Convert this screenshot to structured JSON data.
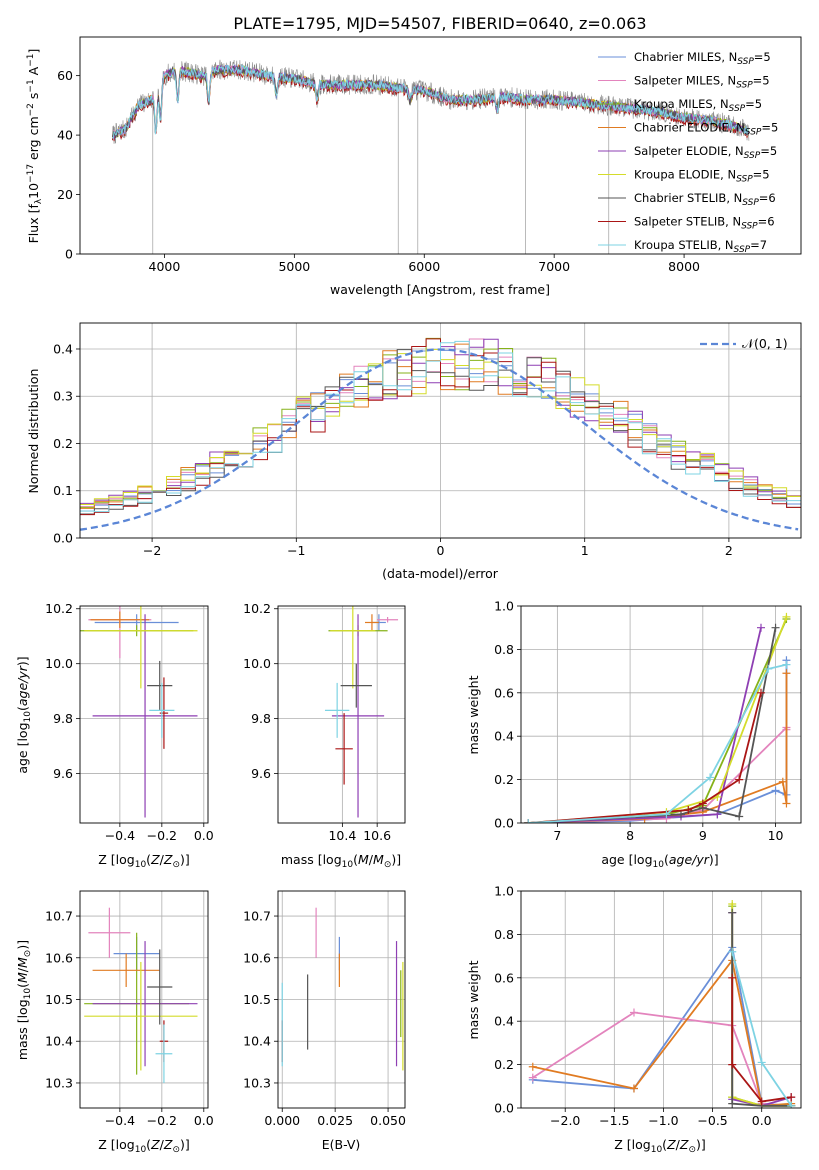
{
  "figure_title": "PLATE=1795, MJD=54507, FIBERID=0640, z=0.063",
  "series_names": [
    "Chabrier MILES, N_SSP=5",
    "Salpeter MILES, N_SSP=5",
    "Kroupa MILES, N_SSP=5",
    "Chabrier ELODIE, N_SSP=5",
    "Salpeter ELODIE, N_SSP=5",
    "Kroupa ELODIE, N_SSP=5",
    "Chabrier STELIB, N_SSP=6",
    "Salpeter STELIB, N_SSP=6",
    "Kroupa STELIB, N_SSP=7"
  ],
  "colors": [
    "#6a8fd8",
    "#e384bd",
    "#86b21a",
    "#e07b22",
    "#8e3fb3",
    "#d4dc2a",
    "#555555",
    "#aa1515",
    "#7ed3e3"
  ],
  "chart_data": [
    {
      "type": "line",
      "title": "PLATE=1795, MJD=54507, FIBERID=0640, z=0.063",
      "xlabel": "wavelength [Angstrom, rest frame]",
      "ylabel": "Flux [f_λ 10^-17 erg cm^-2 s^-1 A^-1]",
      "xlim": [
        3350,
        8900
      ],
      "ylim": [
        0,
        73
      ],
      "xticks": [
        4000,
        5000,
        6000,
        7000,
        8000
      ],
      "yticks": [
        0,
        20,
        40,
        60
      ],
      "legend": "upper-right",
      "x": [
        3600,
        3700,
        3800,
        3900,
        4000,
        4100,
        4200,
        4300,
        4400,
        4600,
        4800,
        5000,
        5200,
        5400,
        5600,
        5800,
        6000,
        6200,
        6400,
        6600,
        6800,
        7000,
        7200,
        7400,
        7600,
        7800,
        8000,
        8200,
        8400,
        8500
      ],
      "series": [
        {
          "name": "Kroupa STELIB, N_SSP=7",
          "values": [
            40,
            42,
            50,
            52,
            60,
            62,
            61,
            60,
            62,
            62,
            60,
            59,
            57,
            57,
            57,
            56,
            55,
            52,
            52,
            53,
            52,
            52,
            51,
            50,
            49,
            48,
            46,
            45,
            43,
            41
          ]
        }
      ]
    },
    {
      "type": "histogram",
      "xlabel": "(data-model)/error",
      "ylabel": "Normed distribution",
      "xlim": [
        -2.5,
        2.5
      ],
      "ylim": [
        0,
        0.455
      ],
      "xticks": [
        -2,
        -1,
        0,
        1,
        2
      ],
      "yticks": [
        0.0,
        0.1,
        0.2,
        0.3,
        0.4
      ],
      "legend": "upper-right",
      "reference_curve": "𝒩(0, 1)",
      "bin_width": 0.1
    },
    {
      "type": "scatter",
      "xlabel": "Z [log10(Z/Z⊙)]",
      "ylabel": "age  [log10(age/yr)]",
      "xlim": [
        -0.59,
        0.02
      ],
      "ylim": [
        9.42,
        10.21
      ],
      "xticks": [
        -0.4,
        -0.2,
        0.0
      ],
      "yticks": [
        9.6,
        9.8,
        10.0,
        10.2
      ],
      "points": [
        {
          "x": -0.32,
          "y": 10.15,
          "xerr": 0.2,
          "yerr": 0.03
        },
        {
          "x": -0.4,
          "y": 10.16,
          "xerr": 0.15,
          "yerr": 0.14
        },
        {
          "x": -0.32,
          "y": 10.12,
          "xerr": 0.27,
          "yerr": 0.02
        },
        {
          "x": -0.4,
          "y": 10.16,
          "xerr": 0.14,
          "yerr": 0.03
        },
        {
          "x": -0.28,
          "y": 9.81,
          "xerr": 0.25,
          "yerr": 0.37
        },
        {
          "x": -0.3,
          "y": 10.12,
          "xerr": 0.27,
          "yerr": 0.21
        },
        {
          "x": -0.21,
          "y": 9.92,
          "xerr": 0.06,
          "yerr": 0.09
        },
        {
          "x": -0.19,
          "y": 9.82,
          "xerr": 0.02,
          "yerr": 0.13
        },
        {
          "x": -0.2,
          "y": 9.83,
          "xerr": 0.06,
          "yerr": 0.1
        }
      ]
    },
    {
      "type": "scatter",
      "xlabel": "mass [log10(M/M⊙)]",
      "ylabel": "",
      "xlim": [
        10.03,
        10.76
      ],
      "ylim": [
        9.42,
        10.21
      ],
      "xticks": [
        10.4,
        10.6
      ],
      "yticks": [
        9.6,
        9.8,
        10.0,
        10.2
      ],
      "points": [
        {
          "x": 10.61,
          "y": 10.15,
          "xerr": 0.04,
          "yerr": 0.03
        },
        {
          "x": 10.66,
          "y": 10.16,
          "xerr": 0.06,
          "yerr": 0.01
        },
        {
          "x": 10.49,
          "y": 10.12,
          "xerr": 0.17,
          "yerr": 0.02
        },
        {
          "x": 10.57,
          "y": 10.15,
          "xerr": 0.04,
          "yerr": 0.03
        },
        {
          "x": 10.49,
          "y": 9.81,
          "xerr": 0.15,
          "yerr": 0.37
        },
        {
          "x": 10.46,
          "y": 10.12,
          "xerr": 0.13,
          "yerr": 0.21
        },
        {
          "x": 10.48,
          "y": 9.92,
          "xerr": 0.09,
          "yerr": 0.08
        },
        {
          "x": 10.41,
          "y": 9.69,
          "xerr": 0.05,
          "yerr": 0.13
        },
        {
          "x": 10.37,
          "y": 9.83,
          "xerr": 0.07,
          "yerr": 0.1
        }
      ]
    },
    {
      "type": "line",
      "xlabel": "age  [log10(age/yr)]",
      "ylabel": "mass weight",
      "xlim": [
        6.5,
        10.35
      ],
      "ylim": [
        0,
        1.0
      ],
      "xticks": [
        7,
        8,
        9,
        10
      ],
      "yticks": [
        0.0,
        0.2,
        0.4,
        0.6,
        0.8,
        1.0
      ],
      "series": [
        {
          "name": "Chabrier MILES, N_SSP=5",
          "x": [
            6.6,
            8.0,
            9.2,
            10.0,
            10.15,
            10.15
          ],
          "values": [
            0.0,
            0.01,
            0.04,
            0.15,
            0.13,
            0.75
          ]
        },
        {
          "name": "Salpeter MILES, N_SSP=5",
          "x": [
            6.6,
            8.5,
            9.0,
            10.15,
            10.15
          ],
          "values": [
            0.0,
            0.02,
            0.06,
            0.44,
            0.43
          ]
        },
        {
          "name": "Kroupa MILES, N_SSP=5",
          "x": [
            6.6,
            8.5,
            9.0,
            10.15
          ],
          "values": [
            0.0,
            0.04,
            0.08,
            0.94
          ]
        },
        {
          "name": "Chabrier ELODIE, N_SSP=5",
          "x": [
            6.6,
            8.2,
            9.0,
            10.1,
            10.15,
            10.15
          ],
          "values": [
            0.0,
            0.02,
            0.05,
            0.19,
            0.09,
            0.69
          ]
        },
        {
          "name": "Salpeter ELODIE, N_SSP=5",
          "x": [
            6.6,
            8.7,
            9.2,
            9.8
          ],
          "values": [
            0.0,
            0.03,
            0.04,
            0.9
          ]
        },
        {
          "name": "Kroupa ELODIE, N_SSP=5",
          "x": [
            6.6,
            8.5,
            9.2,
            10.15
          ],
          "values": [
            0.0,
            0.05,
            0.12,
            0.95
          ]
        },
        {
          "name": "Chabrier STELIB, N_SSP=6",
          "x": [
            6.6,
            8.7,
            9.0,
            9.5,
            10.0
          ],
          "values": [
            0.0,
            0.04,
            0.07,
            0.03,
            0.9
          ]
        },
        {
          "name": "Salpeter STELIB, N_SSP=6",
          "x": [
            6.6,
            8.8,
            9.0,
            9.5,
            9.8
          ],
          "values": [
            0.0,
            0.06,
            0.09,
            0.2,
            0.6
          ]
        },
        {
          "name": "Kroupa STELIB, N_SSP=7",
          "x": [
            6.6,
            8.5,
            9.1,
            9.9,
            10.15
          ],
          "values": [
            0.0,
            0.04,
            0.21,
            0.71,
            0.73
          ]
        }
      ]
    },
    {
      "type": "scatter",
      "xlabel": "Z [log10(Z/Z⊙)]",
      "ylabel": "mass [log10(M/M⊙)]",
      "xlim": [
        -0.59,
        0.02
      ],
      "ylim": [
        10.24,
        10.76
      ],
      "xticks": [
        -0.4,
        -0.2,
        0.0
      ],
      "yticks": [
        10.3,
        10.4,
        10.5,
        10.6,
        10.7
      ],
      "points": [
        {
          "x": -0.32,
          "y": 10.61,
          "xerr": 0.11,
          "yerr": 0.04
        },
        {
          "x": -0.45,
          "y": 10.66,
          "xerr": 0.1,
          "yerr": 0.06
        },
        {
          "x": -0.32,
          "y": 10.49,
          "xerr": 0.25,
          "yerr": 0.17
        },
        {
          "x": -0.37,
          "y": 10.57,
          "xerr": 0.16,
          "yerr": 0.04
        },
        {
          "x": -0.28,
          "y": 10.49,
          "xerr": 0.25,
          "yerr": 0.15
        },
        {
          "x": -0.3,
          "y": 10.46,
          "xerr": 0.27,
          "yerr": 0.13
        },
        {
          "x": -0.21,
          "y": 10.53,
          "xerr": 0.06,
          "yerr": 0.09
        },
        {
          "x": -0.19,
          "y": 10.4,
          "xerr": 0.02,
          "yerr": 0.05
        },
        {
          "x": -0.19,
          "y": 10.37,
          "xerr": 0.04,
          "yerr": 0.07
        }
      ]
    },
    {
      "type": "scatter",
      "xlabel": "E(B-V)",
      "ylabel": "",
      "xlim": [
        -0.002,
        0.058
      ],
      "ylim": [
        10.24,
        10.76
      ],
      "xticks": [
        0.0,
        0.025,
        0.05
      ],
      "xticklabels": [
        "0.000",
        "0.025",
        "0.050"
      ],
      "yticks": [
        10.3,
        10.4,
        10.5,
        10.6,
        10.7
      ],
      "points": [
        {
          "x": 0.027,
          "y": 10.61,
          "yerr": 0.04
        },
        {
          "x": 0.016,
          "y": 10.66,
          "yerr": 0.06
        },
        {
          "x": 0.056,
          "y": 10.49,
          "yerr": 0.08
        },
        {
          "x": 0.027,
          "y": 10.57,
          "yerr": 0.04
        },
        {
          "x": 0.054,
          "y": 10.49,
          "yerr": 0.15
        },
        {
          "x": 0.057,
          "y": 10.46,
          "yerr": 0.13
        },
        {
          "x": 0.012,
          "y": 10.47,
          "yerr": 0.09
        },
        {
          "x": 0.0,
          "y": 10.4,
          "yerr": 0.05
        },
        {
          "x": 0.0,
          "y": 10.44,
          "yerr": 0.1
        }
      ]
    },
    {
      "type": "line",
      "xlabel": "Z [log10(Z/Z⊙)]",
      "ylabel": "mass weight",
      "xlim": [
        -2.45,
        0.4
      ],
      "ylim": [
        0,
        1.0
      ],
      "xticks": [
        -2.0,
        -1.5,
        -1.0,
        -0.5,
        0.0
      ],
      "yticks": [
        0.0,
        0.2,
        0.4,
        0.6,
        0.8,
        1.0
      ],
      "series": [
        {
          "name": "Chabrier MILES, N_SSP=5",
          "x": [
            -2.33,
            -1.3,
            -0.3,
            0.0,
            0.3
          ],
          "values": [
            0.13,
            0.09,
            0.74,
            0.02,
            0.01
          ]
        },
        {
          "name": "Salpeter MILES, N_SSP=5",
          "x": [
            -2.33,
            -1.3,
            -0.3,
            0.0,
            0.3
          ],
          "values": [
            0.14,
            0.44,
            0.38,
            0.02,
            0.01
          ]
        },
        {
          "name": "Kroupa MILES, N_SSP=5",
          "x": [
            -0.3,
            -0.3,
            0.0,
            0.3
          ],
          "values": [
            0.93,
            0.05,
            0.01,
            0.01
          ]
        },
        {
          "name": "Chabrier ELODIE, N_SSP=5",
          "x": [
            -2.33,
            -1.3,
            -0.3,
            0.0,
            0.3
          ],
          "values": [
            0.19,
            0.09,
            0.68,
            0.01,
            0.02
          ]
        },
        {
          "name": "Salpeter ELODIE, N_SSP=5",
          "x": [
            -0.3,
            -0.3,
            0.0,
            0.3
          ],
          "values": [
            0.9,
            0.04,
            0.01,
            0.05
          ]
        },
        {
          "name": "Kroupa ELODIE, N_SSP=5",
          "x": [
            -0.3,
            -0.3,
            0.0,
            0.3
          ],
          "values": [
            0.94,
            0.05,
            0.01,
            0.01
          ]
        },
        {
          "name": "Chabrier STELIB, N_SSP=6",
          "x": [
            -0.3,
            -0.3,
            0.0,
            0.3
          ],
          "values": [
            0.9,
            0.02,
            0.01,
            0.01
          ]
        },
        {
          "name": "Salpeter STELIB, N_SSP=6",
          "x": [
            -0.3,
            -0.3,
            0.0,
            0.3
          ],
          "values": [
            0.6,
            0.2,
            0.03,
            0.05
          ]
        },
        {
          "name": "Kroupa STELIB, N_SSP=7",
          "x": [
            -0.3,
            0.0,
            0.3
          ],
          "values": [
            0.72,
            0.21,
            0.01
          ]
        }
      ]
    }
  ]
}
